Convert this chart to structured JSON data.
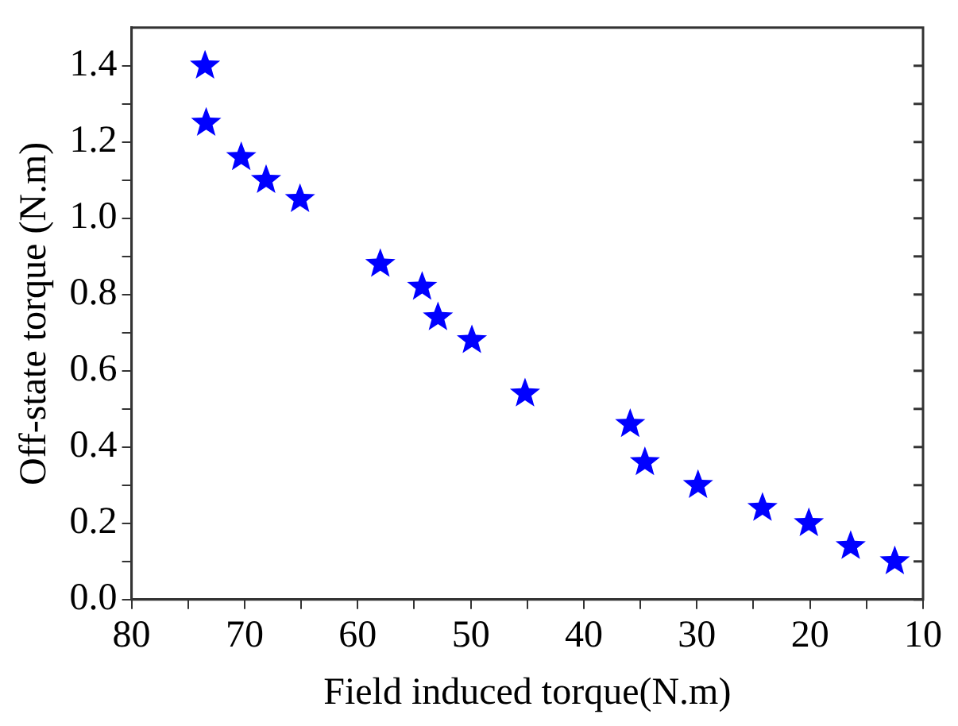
{
  "chart_data": {
    "type": "scatter",
    "xlabel": "Field induced torque(N.m)",
    "ylabel": "Off-state torque (N.m)",
    "x": [
      73.5,
      73.4,
      70.3,
      68.1,
      65.1,
      58.0,
      54.3,
      52.9,
      49.9,
      45.2,
      35.9,
      34.6,
      29.9,
      24.2,
      20.1,
      16.4,
      12.5
    ],
    "series": [
      {
        "color": "#0000ff",
        "values": [
          1.4,
          1.25,
          1.16,
          1.1,
          1.05,
          0.88,
          0.82,
          0.74,
          0.68,
          0.54,
          0.46,
          0.36,
          0.3,
          0.24,
          0.2,
          0.14,
          0.1
        ]
      }
    ],
    "xlim": [
      80,
      10
    ],
    "xticks": [
      80,
      {
        "value": 75,
        "label": null
      },
      70,
      {
        "value": 65,
        "label": null
      },
      60,
      {
        "value": 55,
        "label": null
      },
      50,
      {
        "value": 45,
        "label": null
      },
      40,
      {
        "value": 35,
        "label": null
      },
      30,
      {
        "value": 25,
        "label": null
      },
      20,
      {
        "value": 15,
        "label": null
      },
      10
    ],
    "ylim": [
      0,
      1.5
    ],
    "yticks": [
      {
        "value": 0,
        "label": "0.0"
      },
      {
        "value": 0.1,
        "label": null
      },
      {
        "value": 0.2,
        "label": "0.2"
      },
      {
        "value": 0.3,
        "label": null
      },
      {
        "value": 0.4,
        "label": "0.4"
      },
      {
        "value": 0.5,
        "label": null
      },
      {
        "value": 0.6,
        "label": "0.6"
      },
      {
        "value": 0.7,
        "label": null
      },
      {
        "value": 0.8,
        "label": "0.8"
      },
      {
        "value": 0.9,
        "label": null
      },
      {
        "value": 1.0,
        "label": "1.0"
      },
      {
        "value": 1.1,
        "label": null
      },
      {
        "value": 1.2,
        "label": "1.2"
      },
      {
        "value": 1.3,
        "label": null
      },
      {
        "value": 1.4,
        "label": "1.4"
      }
    ],
    "marker": "star",
    "grid": false,
    "legend": false
  }
}
